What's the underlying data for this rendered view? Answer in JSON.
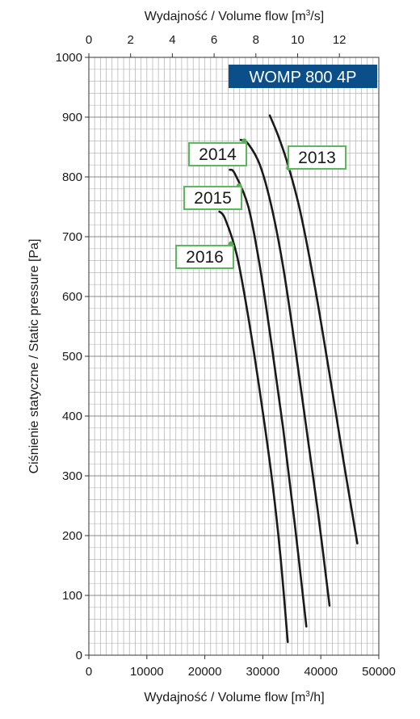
{
  "chart_data": {
    "type": "line",
    "title": "WOMP 800 4P",
    "xlabel": "Wydajność / Volume flow [m³/h]",
    "x2label": "Wydajność / Volume flow [m³/s]",
    "ylabel": "Ciśnienie statyczne / Static pressure [Pa]",
    "xlim": [
      0,
      50000
    ],
    "ylim": [
      0,
      1000
    ],
    "x2lim": [
      0,
      13.889
    ],
    "xticks": [
      "0",
      "10000",
      "20000",
      "30000",
      "40000",
      "50000"
    ],
    "x2ticks": [
      "0",
      "2",
      "4",
      "6",
      "8",
      "10",
      "12"
    ],
    "yticks": [
      "0",
      "100",
      "200",
      "300",
      "400",
      "500",
      "600",
      "700",
      "800",
      "900",
      "1000"
    ],
    "grid": true,
    "series": [
      {
        "name": "2013",
        "x": [
          31200,
          32800,
          34500,
          36500,
          39000,
          41500,
          44000,
          46300
        ],
        "y": [
          903,
          865,
          815,
          740,
          615,
          470,
          320,
          187
        ],
        "marker": [
          34500,
          815
        ]
      },
      {
        "name": "2014",
        "x": [
          26200,
          27500,
          29500,
          31500,
          33500,
          35500,
          37500,
          39500,
          41500
        ],
        "y": [
          862,
          855,
          820,
          750,
          650,
          520,
          380,
          240,
          83
        ]
      },
      {
        "name": "2015",
        "x": [
          24300,
          25200,
          27500,
          29500,
          31500,
          33500,
          35500,
          37500
        ],
        "y": [
          812,
          805,
          750,
          650,
          520,
          380,
          220,
          48
        ]
      },
      {
        "name": "2016",
        "x": [
          22500,
          23500,
          25500,
          27500,
          29500,
          31500,
          33000,
          34300
        ],
        "y": [
          742,
          730,
          670,
          565,
          440,
          300,
          170,
          22
        ]
      }
    ],
    "markers": [
      {
        "x": 34500,
        "y": 815
      },
      {
        "x": 26800,
        "y": 860
      },
      {
        "x": 25900,
        "y": 785
      },
      {
        "x": 24500,
        "y": 688
      }
    ],
    "callouts": [
      {
        "label": "2013",
        "series": "2013"
      },
      {
        "label": "2014",
        "series": "2014"
      },
      {
        "label": "2015",
        "series": "2015"
      },
      {
        "label": "2016",
        "series": "2016"
      }
    ],
    "colors": {
      "curve": "#1a1a1a",
      "marker": "#4caf50",
      "callout_border": "#5cb85c",
      "badge": "#0b4f8a",
      "grid": "#b8b8b8"
    }
  }
}
